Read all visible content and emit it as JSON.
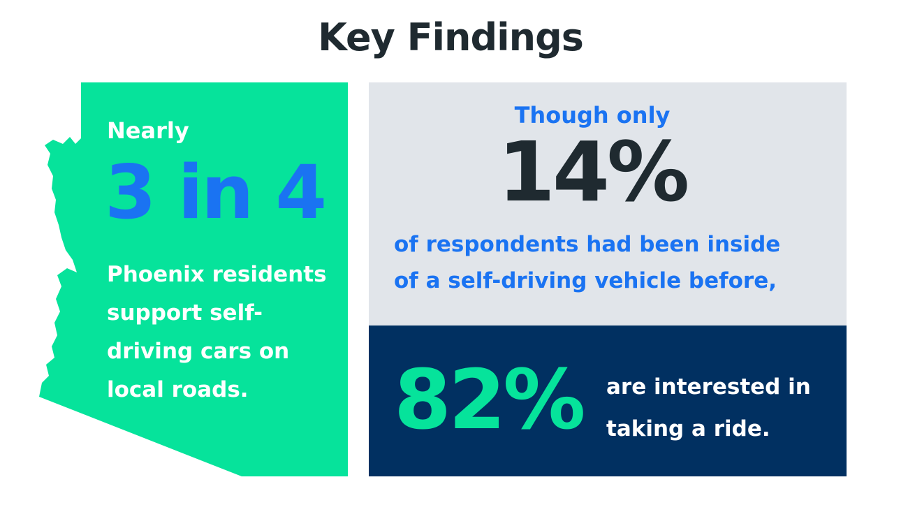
{
  "title": "Key Findings",
  "colors": {
    "green": "#06e39b",
    "blue": "#1a73f2",
    "navy": "#013061",
    "light_gray": "#e1e5ea",
    "dark_text": "#1f2a30"
  },
  "left_panel": {
    "shape_icon": "arizona-map-icon",
    "intro": "Nearly",
    "stat": "3 in 4",
    "line1": "Phoenix residents",
    "line2": "support self-",
    "line3": "driving cars on",
    "line4": "local roads."
  },
  "top_right": {
    "intro": "Though only",
    "stat": "14%",
    "line1": "of respondents had been inside",
    "line2": "of a self-driving vehicle before,"
  },
  "bottom_right": {
    "stat": "82%",
    "line1": "are interested in",
    "line2": "taking a ride."
  }
}
